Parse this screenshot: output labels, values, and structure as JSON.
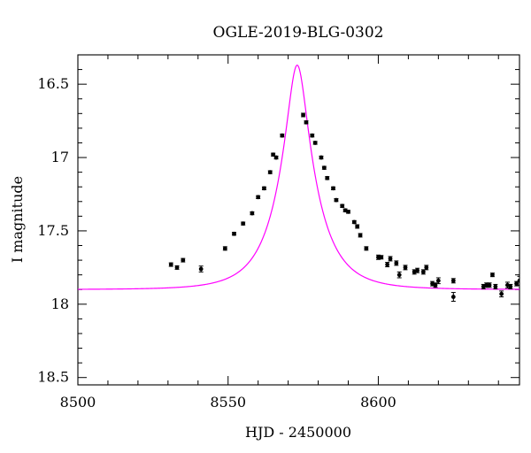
{
  "chart_data": {
    "type": "scatter",
    "title": "OGLE-2019-BLG-0302",
    "xlabel": "HJD - 2450000",
    "ylabel": "I magnitude",
    "xlim": [
      8500,
      8647
    ],
    "ylim": [
      18.55,
      16.3
    ],
    "y_inverted": true,
    "x_ticks": [
      8500,
      8550,
      8600
    ],
    "y_ticks": [
      16.5,
      17,
      17.5,
      18,
      18.5
    ],
    "grid": false,
    "colors": {
      "points": "#000000",
      "model": "#ff00ff"
    },
    "model": {
      "t0": 8573,
      "u0": 0.25,
      "tE": 12.5,
      "baseline_mag": 17.9
    },
    "series": [
      {
        "kind": "points",
        "x": [
          8531,
          8533,
          8535,
          8541,
          8549,
          8552,
          8555,
          8558,
          8560,
          8562,
          8564,
          8565,
          8566,
          8568,
          8575,
          8576,
          8578,
          8579,
          8581,
          8582,
          8583,
          8585,
          8586,
          8588,
          8589,
          8590,
          8592,
          8593,
          8594,
          8596,
          8600,
          8601,
          8603,
          8604,
          8606,
          8607,
          8609,
          8612,
          8613,
          8615,
          8616,
          8618,
          8619,
          8620,
          8625,
          8625,
          8635,
          8636,
          8637,
          8638,
          8639,
          8641,
          8643,
          8644,
          8646,
          8647
        ],
        "y": [
          17.73,
          17.75,
          17.7,
          17.76,
          17.62,
          17.52,
          17.45,
          17.38,
          17.27,
          17.21,
          17.1,
          16.98,
          17.0,
          16.85,
          16.71,
          16.76,
          16.85,
          16.9,
          17.0,
          17.07,
          17.14,
          17.21,
          17.29,
          17.33,
          17.36,
          17.37,
          17.44,
          17.47,
          17.53,
          17.62,
          17.68,
          17.68,
          17.73,
          17.69,
          17.72,
          17.8,
          17.75,
          17.78,
          17.77,
          17.78,
          17.75,
          17.86,
          17.87,
          17.84,
          17.95,
          17.84,
          17.88,
          17.87,
          17.87,
          17.8,
          17.88,
          17.93,
          17.87,
          17.88,
          17.86,
          17.84
        ],
        "y_err": [
          0.012,
          0.012,
          0.012,
          0.02,
          0.012,
          0.01,
          0.01,
          0.01,
          0.01,
          0.01,
          0.01,
          0.01,
          0.01,
          0.01,
          0.012,
          0.01,
          0.01,
          0.01,
          0.01,
          0.01,
          0.01,
          0.01,
          0.01,
          0.01,
          0.01,
          0.01,
          0.01,
          0.012,
          0.012,
          0.012,
          0.015,
          0.012,
          0.015,
          0.015,
          0.015,
          0.02,
          0.015,
          0.015,
          0.015,
          0.015,
          0.015,
          0.015,
          0.015,
          0.02,
          0.03,
          0.015,
          0.015,
          0.015,
          0.015,
          0.012,
          0.015,
          0.02,
          0.02,
          0.015,
          0.015,
          0.03
        ]
      }
    ]
  }
}
